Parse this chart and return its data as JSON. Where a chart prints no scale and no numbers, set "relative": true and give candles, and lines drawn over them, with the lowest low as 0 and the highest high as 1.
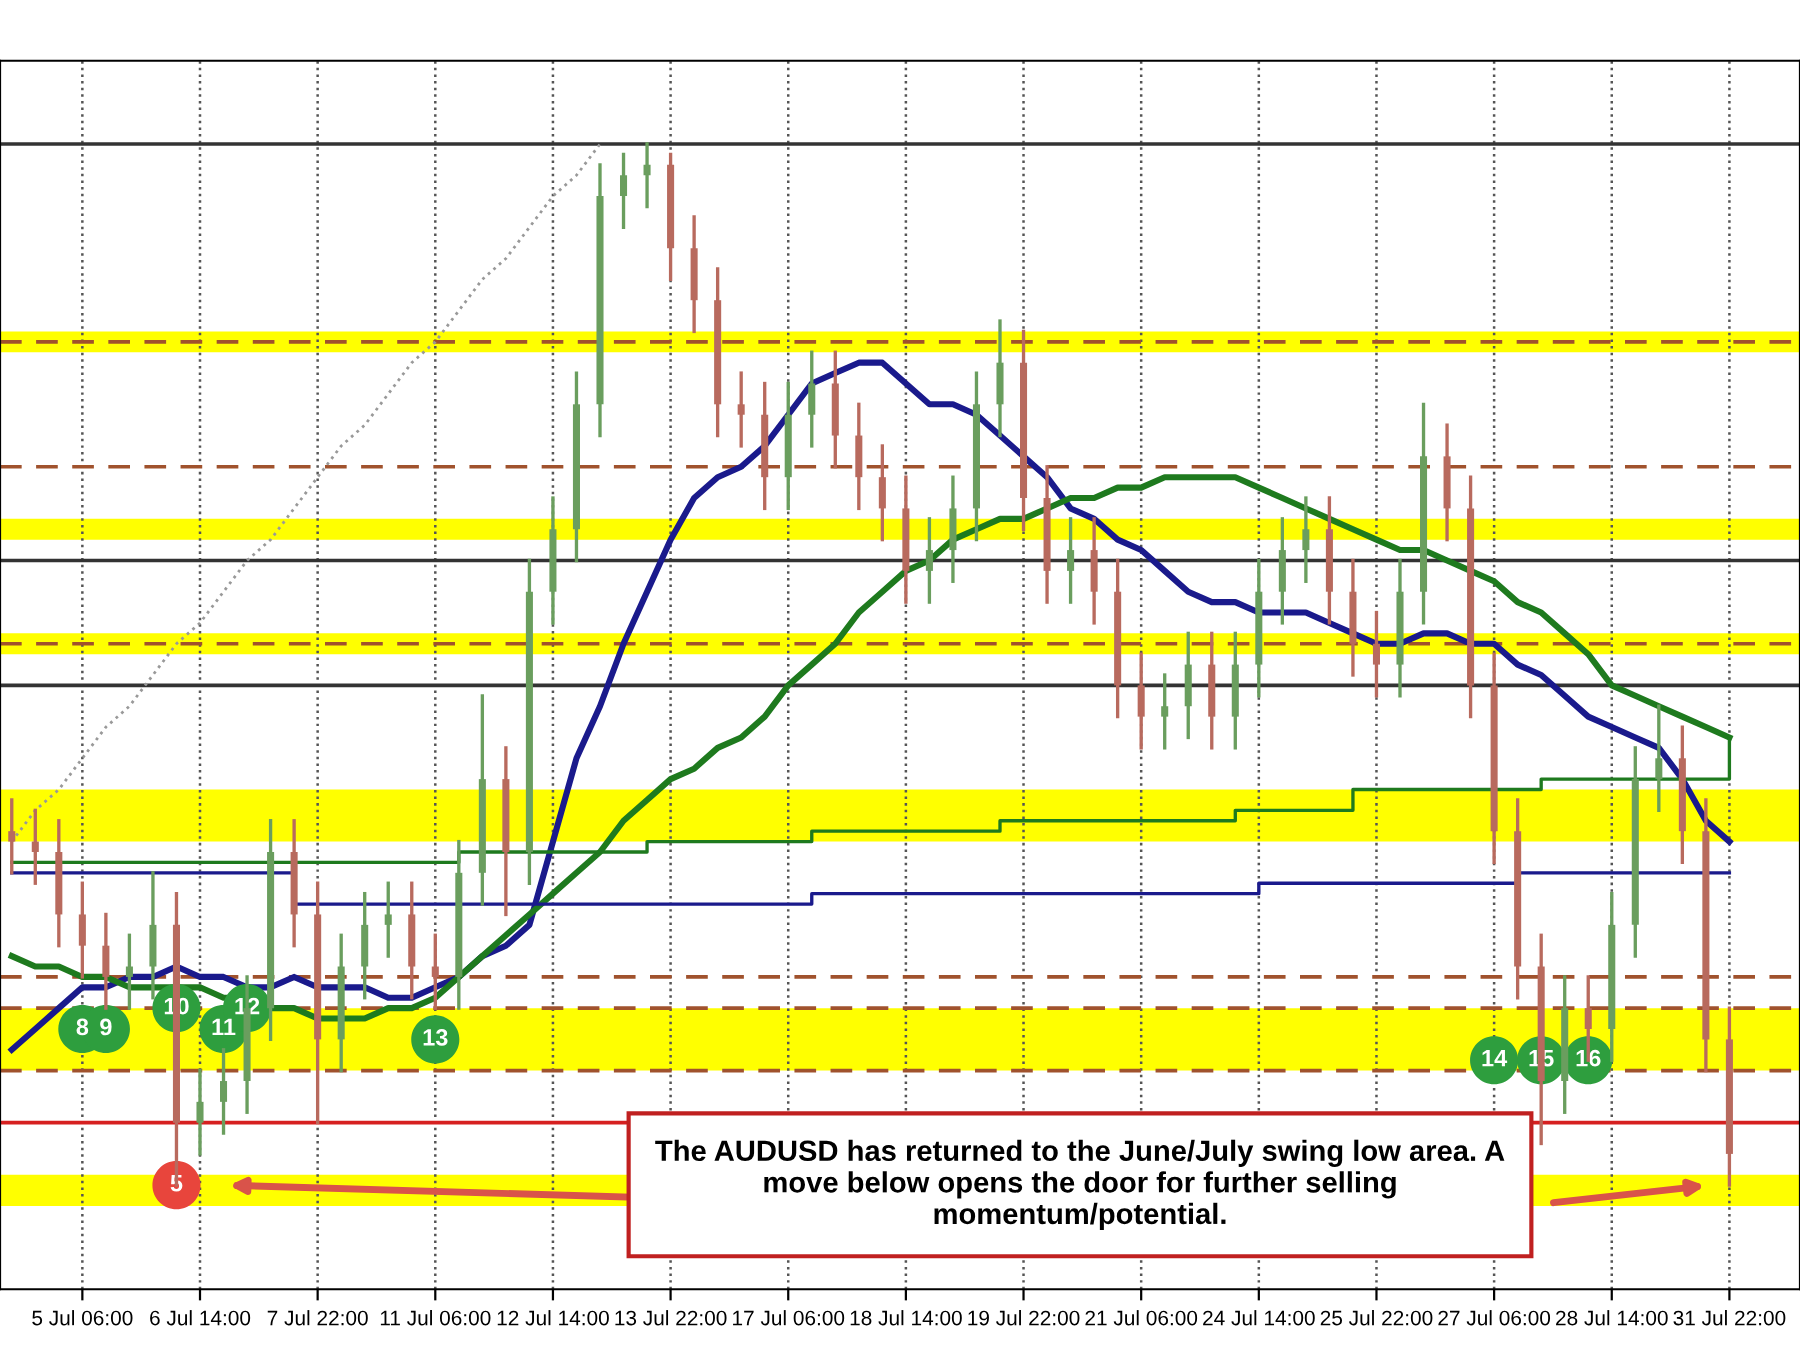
{
  "chart_data": {
    "type": "candlestick",
    "relative": true,
    "categories": [
      null,
      null,
      null,
      "5 Jul 06:00",
      null,
      null,
      null,
      null,
      "6 Jul 14:00",
      null,
      null,
      null,
      null,
      "7 Jul 22:00",
      null,
      null,
      null,
      null,
      "11 Jul 06:00",
      null,
      null,
      null,
      null,
      "12 Jul 14:00",
      null,
      null,
      null,
      null,
      "13 Jul 22:00",
      null,
      null,
      null,
      null,
      "17 Jul 06:00",
      null,
      null,
      null,
      null,
      "18 Jul 14:00",
      null,
      null,
      null,
      null,
      "19 Jul 22:00",
      null,
      null,
      null,
      null,
      "21 Jul 06:00",
      null,
      null,
      null,
      null,
      "24 Jul 14:00",
      null,
      null,
      null,
      null,
      "25 Jul 22:00",
      null,
      null,
      null,
      null,
      "27 Jul 06:00",
      null,
      null,
      null,
      null,
      "28 Jul 14:00",
      null,
      null,
      null,
      null,
      "31 Jul 22:00"
    ],
    "ohlc": [
      [
        0.34,
        0.37,
        0.3,
        0.33
      ],
      [
        0.33,
        0.36,
        0.29,
        0.32
      ],
      [
        0.32,
        0.35,
        0.23,
        0.26
      ],
      [
        0.26,
        0.29,
        0.2,
        0.23
      ],
      [
        0.23,
        0.26,
        0.17,
        0.2
      ],
      [
        0.2,
        0.24,
        0.17,
        0.21
      ],
      [
        0.21,
        0.3,
        0.18,
        0.25
      ],
      [
        0.25,
        0.28,
        0.0,
        0.06
      ],
      [
        0.06,
        0.11,
        0.03,
        0.08
      ],
      [
        0.08,
        0.13,
        0.05,
        0.1
      ],
      [
        0.1,
        0.2,
        0.07,
        0.17
      ],
      [
        0.17,
        0.35,
        0.14,
        0.32
      ],
      [
        0.32,
        0.35,
        0.23,
        0.26
      ],
      [
        0.26,
        0.29,
        0.06,
        0.14
      ],
      [
        0.14,
        0.24,
        0.11,
        0.21
      ],
      [
        0.21,
        0.28,
        0.18,
        0.25
      ],
      [
        0.25,
        0.29,
        0.22,
        0.26
      ],
      [
        0.26,
        0.29,
        0.18,
        0.21
      ],
      [
        0.21,
        0.24,
        0.17,
        0.2
      ],
      [
        0.2,
        0.33,
        0.17,
        0.3
      ],
      [
        0.3,
        0.47,
        0.27,
        0.39
      ],
      [
        0.39,
        0.42,
        0.26,
        0.32
      ],
      [
        0.32,
        0.6,
        0.29,
        0.57
      ],
      [
        0.57,
        0.66,
        0.54,
        0.63
      ],
      [
        0.63,
        0.78,
        0.6,
        0.75
      ],
      [
        0.75,
        0.98,
        0.72,
        0.95
      ],
      [
        0.95,
        0.99,
        0.92,
        0.97
      ],
      [
        0.97,
        1.0,
        0.94,
        0.98
      ],
      [
        0.98,
        0.99,
        0.87,
        0.9
      ],
      [
        0.9,
        0.93,
        0.82,
        0.85
      ],
      [
        0.85,
        0.88,
        0.72,
        0.75
      ],
      [
        0.75,
        0.78,
        0.71,
        0.74
      ],
      [
        0.74,
        0.77,
        0.65,
        0.68
      ],
      [
        0.68,
        0.77,
        0.65,
        0.74
      ],
      [
        0.74,
        0.8,
        0.71,
        0.77
      ],
      [
        0.77,
        0.8,
        0.69,
        0.72
      ],
      [
        0.72,
        0.75,
        0.65,
        0.68
      ],
      [
        0.68,
        0.71,
        0.62,
        0.65
      ],
      [
        0.65,
        0.68,
        0.56,
        0.59
      ],
      [
        0.59,
        0.64,
        0.56,
        0.61
      ],
      [
        0.61,
        0.68,
        0.58,
        0.65
      ],
      [
        0.65,
        0.78,
        0.62,
        0.75
      ],
      [
        0.75,
        0.83,
        0.72,
        0.79
      ],
      [
        0.79,
        0.82,
        0.63,
        0.66
      ],
      [
        0.66,
        0.69,
        0.56,
        0.59
      ],
      [
        0.59,
        0.64,
        0.56,
        0.61
      ],
      [
        0.61,
        0.64,
        0.54,
        0.57
      ],
      [
        0.57,
        0.6,
        0.45,
        0.48
      ],
      [
        0.48,
        0.51,
        0.42,
        0.45
      ],
      [
        0.45,
        0.49,
        0.42,
        0.46
      ],
      [
        0.46,
        0.53,
        0.43,
        0.5
      ],
      [
        0.5,
        0.53,
        0.42,
        0.45
      ],
      [
        0.45,
        0.53,
        0.42,
        0.5
      ],
      [
        0.5,
        0.6,
        0.47,
        0.57
      ],
      [
        0.57,
        0.64,
        0.54,
        0.61
      ],
      [
        0.61,
        0.66,
        0.58,
        0.63
      ],
      [
        0.63,
        0.66,
        0.54,
        0.57
      ],
      [
        0.57,
        0.6,
        0.49,
        0.52
      ],
      [
        0.52,
        0.55,
        0.47,
        0.5
      ],
      [
        0.5,
        0.6,
        0.47,
        0.57
      ],
      [
        0.57,
        0.75,
        0.54,
        0.7
      ],
      [
        0.7,
        0.73,
        0.62,
        0.65
      ],
      [
        0.65,
        0.68,
        0.45,
        0.48
      ],
      [
        0.48,
        0.51,
        0.31,
        0.34
      ],
      [
        0.34,
        0.37,
        0.18,
        0.21
      ],
      [
        0.21,
        0.24,
        0.04,
        0.1
      ],
      [
        0.1,
        0.2,
        0.07,
        0.17
      ],
      [
        0.17,
        0.2,
        0.12,
        0.15
      ],
      [
        0.15,
        0.28,
        0.12,
        0.25
      ],
      [
        0.25,
        0.42,
        0.22,
        0.39
      ],
      [
        0.39,
        0.46,
        0.36,
        0.41
      ],
      [
        0.41,
        0.44,
        0.31,
        0.34
      ],
      [
        0.34,
        0.37,
        0.11,
        0.14
      ],
      [
        0.14,
        0.17,
        0.0,
        0.03
      ]
    ],
    "series": [
      {
        "type": "line",
        "color": "#1a1a8c",
        "values": [
          0.13,
          0.15,
          0.17,
          0.19,
          0.19,
          0.2,
          0.2,
          0.21,
          0.2,
          0.2,
          0.19,
          0.19,
          0.2,
          0.19,
          0.19,
          0.19,
          0.18,
          0.18,
          0.19,
          0.2,
          0.22,
          0.23,
          0.25,
          0.33,
          0.41,
          0.46,
          0.52,
          0.57,
          0.62,
          0.66,
          0.68,
          0.69,
          0.71,
          0.74,
          0.77,
          0.78,
          0.79,
          0.79,
          0.77,
          0.75,
          0.75,
          0.74,
          0.72,
          0.7,
          0.68,
          0.65,
          0.64,
          0.62,
          0.61,
          0.59,
          0.57,
          0.56,
          0.56,
          0.55,
          0.55,
          0.55,
          0.54,
          0.53,
          0.52,
          0.52,
          0.53,
          0.53,
          0.52,
          0.52,
          0.5,
          0.49,
          0.47,
          0.45,
          0.44,
          0.43,
          0.42,
          0.39,
          0.35,
          0.33
        ]
      },
      {
        "type": "line",
        "color": "#1e7a1e",
        "values": [
          0.22,
          0.21,
          0.21,
          0.2,
          0.2,
          0.19,
          0.19,
          0.19,
          0.19,
          0.18,
          0.18,
          0.17,
          0.17,
          0.16,
          0.16,
          0.16,
          0.17,
          0.17,
          0.18,
          0.2,
          0.22,
          0.24,
          0.26,
          0.28,
          0.3,
          0.32,
          0.35,
          0.37,
          0.39,
          0.4,
          0.42,
          0.43,
          0.45,
          0.48,
          0.5,
          0.52,
          0.55,
          0.57,
          0.59,
          0.6,
          0.62,
          0.63,
          0.64,
          0.64,
          0.65,
          0.66,
          0.66,
          0.67,
          0.67,
          0.68,
          0.68,
          0.68,
          0.68,
          0.67,
          0.66,
          0.65,
          0.64,
          0.63,
          0.62,
          0.61,
          0.61,
          0.6,
          0.59,
          0.58,
          0.56,
          0.55,
          0.53,
          0.51,
          0.48,
          0.47,
          0.46,
          0.45,
          0.44,
          0.43
        ]
      },
      {
        "type": "step",
        "color": "#1a1a8c",
        "values": [
          0.3,
          0.3,
          0.3,
          0.3,
          0.3,
          0.3,
          0.3,
          0.3,
          0.3,
          0.3,
          0.3,
          0.3,
          0.27,
          0.27,
          0.27,
          0.27,
          0.27,
          0.27,
          0.27,
          0.27,
          0.27,
          0.27,
          0.27,
          0.27,
          0.27,
          0.27,
          0.27,
          0.27,
          0.27,
          0.27,
          0.27,
          0.27,
          0.27,
          0.27,
          0.28,
          0.28,
          0.28,
          0.28,
          0.28,
          0.28,
          0.28,
          0.28,
          0.28,
          0.28,
          0.28,
          0.28,
          0.28,
          0.28,
          0.28,
          0.28,
          0.28,
          0.28,
          0.28,
          0.29,
          0.29,
          0.29,
          0.29,
          0.29,
          0.29,
          0.29,
          0.29,
          0.29,
          0.29,
          0.29,
          0.3,
          0.3,
          0.3,
          0.3,
          0.3,
          0.3,
          0.3,
          0.3,
          0.3,
          0.3
        ]
      },
      {
        "type": "step",
        "color": "#1e7a1e",
        "values": [
          0.31,
          0.31,
          0.31,
          0.31,
          0.31,
          0.31,
          0.31,
          0.31,
          0.31,
          0.31,
          0.31,
          0.31,
          0.31,
          0.31,
          0.31,
          0.31,
          0.31,
          0.31,
          0.31,
          0.32,
          0.32,
          0.32,
          0.32,
          0.32,
          0.32,
          0.32,
          0.32,
          0.33,
          0.33,
          0.33,
          0.33,
          0.33,
          0.33,
          0.33,
          0.34,
          0.34,
          0.34,
          0.34,
          0.34,
          0.34,
          0.34,
          0.34,
          0.35,
          0.35,
          0.35,
          0.35,
          0.35,
          0.35,
          0.35,
          0.35,
          0.35,
          0.35,
          0.36,
          0.36,
          0.36,
          0.36,
          0.36,
          0.38,
          0.38,
          0.38,
          0.38,
          0.38,
          0.38,
          0.38,
          0.38,
          0.39,
          0.39,
          0.39,
          0.39,
          0.39,
          0.39,
          0.39,
          0.39,
          0.43
        ]
      },
      {
        "type": "line",
        "color": "#999999",
        "line_style": "dotted",
        "values": [
          0.33,
          0.36,
          0.38,
          0.41,
          0.44,
          0.46,
          0.49,
          0.52,
          0.54,
          0.57,
          0.6,
          0.62,
          0.65,
          0.68,
          0.71,
          0.73,
          0.76,
          0.79,
          0.81,
          0.84,
          0.87,
          0.89,
          0.92,
          0.95,
          0.97,
          1.0,
          null,
          null,
          null,
          null,
          null,
          null,
          null,
          null,
          null,
          null,
          null,
          null,
          null,
          null,
          null,
          null,
          null,
          null,
          null,
          null,
          null,
          null,
          null,
          null,
          null,
          null,
          null,
          null,
          null,
          null,
          null,
          null,
          null,
          null,
          null,
          null,
          null,
          null,
          null,
          null,
          null,
          null,
          null,
          null,
          null,
          null,
          null,
          null
        ]
      },
      {
        "type": "scatter",
        "name": "5",
        "color": "#e8453c",
        "values": [
          null,
          null,
          null,
          null,
          null,
          null,
          null,
          0.0,
          null,
          null,
          null,
          null,
          null,
          null,
          null,
          null,
          null,
          null,
          null,
          null,
          null,
          null,
          null,
          null,
          null,
          null,
          null,
          null,
          null,
          null,
          null,
          null,
          null,
          null,
          null,
          null,
          null,
          null,
          null,
          null,
          null,
          null,
          null,
          null,
          null,
          null,
          null,
          null,
          null,
          null,
          null,
          null,
          null,
          null,
          null,
          null,
          null,
          null,
          null,
          null,
          null,
          null,
          null,
          null,
          null,
          null,
          null,
          null,
          null,
          null,
          null,
          null,
          null,
          null
        ]
      },
      {
        "type": "scatter",
        "name": "8",
        "color": "#2e9e3e",
        "values": [
          null,
          null,
          null,
          0.15,
          null,
          null,
          null,
          null,
          null,
          null,
          null,
          null,
          null,
          null,
          null,
          null,
          null,
          null,
          null,
          null,
          null,
          null,
          null,
          null,
          null,
          null,
          null,
          null,
          null,
          null,
          null,
          null,
          null,
          null,
          null,
          null,
          null,
          null,
          null,
          null,
          null,
          null,
          null,
          null,
          null,
          null,
          null,
          null,
          null,
          null,
          null,
          null,
          null,
          null,
          null,
          null,
          null,
          null,
          null,
          null,
          null,
          null,
          null,
          null,
          null,
          null,
          null,
          null,
          null,
          null,
          null,
          null,
          null,
          null
        ]
      },
      {
        "type": "scatter",
        "name": "9",
        "color": "#2e9e3e",
        "values": [
          null,
          null,
          null,
          null,
          0.15,
          null,
          null,
          null,
          null,
          null,
          null,
          null,
          null,
          null,
          null,
          null,
          null,
          null,
          null,
          null,
          null,
          null,
          null,
          null,
          null,
          null,
          null,
          null,
          null,
          null,
          null,
          null,
          null,
          null,
          null,
          null,
          null,
          null,
          null,
          null,
          null,
          null,
          null,
          null,
          null,
          null,
          null,
          null,
          null,
          null,
          null,
          null,
          null,
          null,
          null,
          null,
          null,
          null,
          null,
          null,
          null,
          null,
          null,
          null,
          null,
          null,
          null,
          null,
          null,
          null,
          null,
          null,
          null,
          null
        ]
      },
      {
        "type": "scatter",
        "name": "10",
        "color": "#2e9e3e",
        "values": [
          null,
          null,
          null,
          null,
          null,
          null,
          null,
          0.17,
          null,
          null,
          null,
          null,
          null,
          null,
          null,
          null,
          null,
          null,
          null,
          null,
          null,
          null,
          null,
          null,
          null,
          null,
          null,
          null,
          null,
          null,
          null,
          null,
          null,
          null,
          null,
          null,
          null,
          null,
          null,
          null,
          null,
          null,
          null,
          null,
          null,
          null,
          null,
          null,
          null,
          null,
          null,
          null,
          null,
          null,
          null,
          null,
          null,
          null,
          null,
          null,
          null,
          null,
          null,
          null,
          null,
          null,
          null,
          null,
          null,
          null,
          null,
          null,
          null,
          null
        ]
      },
      {
        "type": "scatter",
        "name": "11",
        "color": "#2e9e3e",
        "values": [
          null,
          null,
          null,
          null,
          null,
          null,
          null,
          null,
          null,
          0.15,
          null,
          null,
          null,
          null,
          null,
          null,
          null,
          null,
          null,
          null,
          null,
          null,
          null,
          null,
          null,
          null,
          null,
          null,
          null,
          null,
          null,
          null,
          null,
          null,
          null,
          null,
          null,
          null,
          null,
          null,
          null,
          null,
          null,
          null,
          null,
          null,
          null,
          null,
          null,
          null,
          null,
          null,
          null,
          null,
          null,
          null,
          null,
          null,
          null,
          null,
          null,
          null,
          null,
          null,
          null,
          null,
          null,
          null,
          null,
          null,
          null,
          null,
          null,
          null
        ]
      },
      {
        "type": "scatter",
        "name": "12",
        "color": "#2e9e3e",
        "values": [
          null,
          null,
          null,
          null,
          null,
          null,
          null,
          null,
          null,
          null,
          0.17,
          null,
          null,
          null,
          null,
          null,
          null,
          null,
          null,
          null,
          null,
          null,
          null,
          null,
          null,
          null,
          null,
          null,
          null,
          null,
          null,
          null,
          null,
          null,
          null,
          null,
          null,
          null,
          null,
          null,
          null,
          null,
          null,
          null,
          null,
          null,
          null,
          null,
          null,
          null,
          null,
          null,
          null,
          null,
          null,
          null,
          null,
          null,
          null,
          null,
          null,
          null,
          null,
          null,
          null,
          null,
          null,
          null,
          null,
          null,
          null,
          null,
          null,
          null
        ]
      },
      {
        "type": "scatter",
        "name": "13",
        "color": "#2e9e3e",
        "values": [
          null,
          null,
          null,
          null,
          null,
          null,
          null,
          null,
          null,
          null,
          null,
          null,
          null,
          null,
          null,
          null,
          null,
          null,
          0.14,
          null,
          null,
          null,
          null,
          null,
          null,
          null,
          null,
          null,
          null,
          null,
          null,
          null,
          null,
          null,
          null,
          null,
          null,
          null,
          null,
          null,
          null,
          null,
          null,
          null,
          null,
          null,
          null,
          null,
          null,
          null,
          null,
          null,
          null,
          null,
          null,
          null,
          null,
          null,
          null,
          null,
          null,
          null,
          null,
          null,
          null,
          null,
          null,
          null,
          null,
          null,
          null,
          null,
          null,
          null
        ]
      },
      {
        "type": "scatter",
        "name": "14",
        "color": "#2e9e3e",
        "values": [
          null,
          null,
          null,
          null,
          null,
          null,
          null,
          null,
          null,
          null,
          null,
          null,
          null,
          null,
          null,
          null,
          null,
          null,
          null,
          null,
          null,
          null,
          null,
          null,
          null,
          null,
          null,
          null,
          null,
          null,
          null,
          null,
          null,
          null,
          null,
          null,
          null,
          null,
          null,
          null,
          null,
          null,
          null,
          null,
          null,
          null,
          null,
          null,
          null,
          null,
          null,
          null,
          null,
          null,
          null,
          null,
          null,
          null,
          null,
          null,
          null,
          null,
          null,
          0.12,
          null,
          null,
          null,
          null,
          null,
          null,
          null,
          null,
          null,
          null
        ]
      },
      {
        "type": "scatter",
        "name": "15",
        "color": "#2e9e3e",
        "values": [
          null,
          null,
          null,
          null,
          null,
          null,
          null,
          null,
          null,
          null,
          null,
          null,
          null,
          null,
          null,
          null,
          null,
          null,
          null,
          null,
          null,
          null,
          null,
          null,
          null,
          null,
          null,
          null,
          null,
          null,
          null,
          null,
          null,
          null,
          null,
          null,
          null,
          null,
          null,
          null,
          null,
          null,
          null,
          null,
          null,
          null,
          null,
          null,
          null,
          null,
          null,
          null,
          null,
          null,
          null,
          null,
          null,
          null,
          null,
          null,
          null,
          null,
          null,
          null,
          null,
          0.12,
          null,
          null,
          null,
          null,
          null,
          null,
          null,
          null
        ]
      },
      {
        "type": "scatter",
        "name": "16",
        "color": "#2e9e3e",
        "values": [
          null,
          null,
          null,
          null,
          null,
          null,
          null,
          null,
          null,
          null,
          null,
          null,
          null,
          null,
          null,
          null,
          null,
          null,
          null,
          null,
          null,
          null,
          null,
          null,
          null,
          null,
          null,
          null,
          null,
          null,
          null,
          null,
          null,
          null,
          null,
          null,
          null,
          null,
          null,
          null,
          null,
          null,
          null,
          null,
          null,
          null,
          null,
          null,
          null,
          null,
          null,
          null,
          null,
          null,
          null,
          null,
          null,
          null,
          null,
          null,
          null,
          null,
          null,
          null,
          null,
          null,
          null,
          0.12,
          null,
          null,
          null,
          null,
          null,
          null
        ]
      }
    ],
    "bands": [
      {
        "axis": "y",
        "from": 0.8,
        "to": 0.82,
        "color": "#ffff00"
      },
      {
        "axis": "y",
        "from": 0.62,
        "to": 0.64,
        "color": "#ffff00"
      },
      {
        "axis": "y",
        "from": 0.51,
        "to": 0.53,
        "color": "#ffff00"
      },
      {
        "axis": "y",
        "from": 0.33,
        "to": 0.38,
        "color": "#ffff00"
      },
      {
        "axis": "y",
        "from": 0.11,
        "to": 0.17,
        "color": "#ffff00"
      },
      {
        "axis": "y",
        "from": -0.02,
        "to": 0.01,
        "color": "#ffff00"
      }
    ],
    "ref_lines": [
      {
        "axis": "y",
        "value": 0.06,
        "color": "#d62020"
      },
      {
        "axis": "y",
        "value": 0.81,
        "color": "#a0522d",
        "line_style": "dashed"
      },
      {
        "axis": "y",
        "value": 0.69,
        "color": "#a0522d",
        "line_style": "dashed"
      },
      {
        "axis": "y",
        "value": 0.52,
        "color": "#a0522d",
        "line_style": "dashed"
      },
      {
        "axis": "y",
        "value": 0.2,
        "color": "#a0522d",
        "line_style": "dashed"
      },
      {
        "axis": "y",
        "value": 0.17,
        "color": "#a0522d",
        "line_style": "dashed"
      },
      {
        "axis": "y",
        "value": 0.11,
        "color": "#a0522d",
        "line_style": "dashed"
      },
      {
        "axis": "y",
        "value": 1.0,
        "color": "#333333"
      },
      {
        "axis": "y",
        "value": 0.6,
        "color": "#333333"
      },
      {
        "axis": "y",
        "value": 0.48,
        "color": "#333333"
      }
    ],
    "annotations": [
      "The AUDUSD has returned to the June/July swing low area. A move below opens the door for further selling momentum/potential."
    ],
    "tick_labels": "x",
    "grid": "x"
  }
}
